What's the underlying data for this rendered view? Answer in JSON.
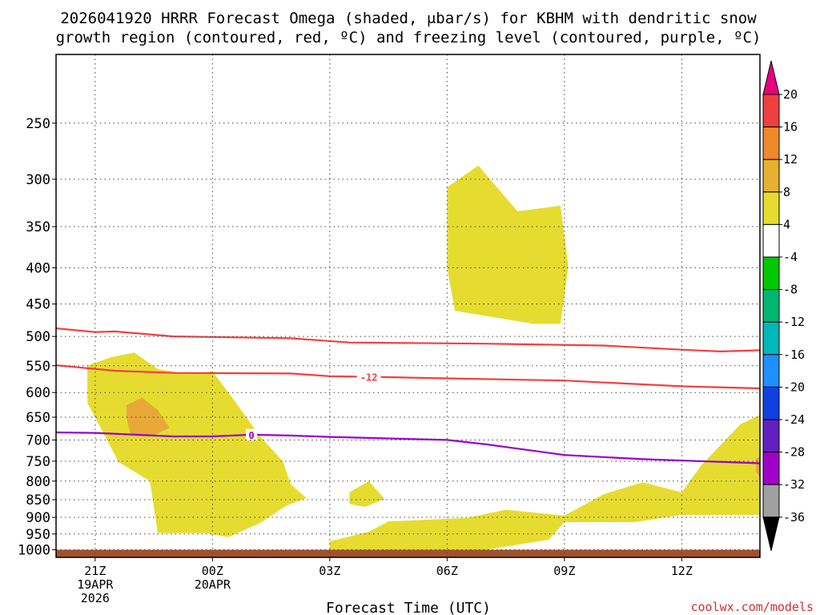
{
  "chart_data": {
    "type": "contour",
    "title_lines": [
      "2026041920 HRRR Forecast Omega (shaded, μbar/s) for KBHM with dendritic snow",
      "growth region (contoured, red, ºC) and freezing level (contoured, purple, ºC)"
    ],
    "xlabel": "Forecast Time (UTC)",
    "credit": "coolwx.com/models",
    "x_ticks": [
      {
        "h": 0,
        "lines": [
          "21Z",
          "19APR",
          "2026"
        ]
      },
      {
        "h": 3,
        "lines": [
          "00Z",
          "20APR"
        ]
      },
      {
        "h": 6,
        "lines": [
          "03Z"
        ]
      },
      {
        "h": 9,
        "lines": [
          "06Z"
        ]
      },
      {
        "h": 12,
        "lines": [
          "09Z"
        ]
      },
      {
        "h": 15,
        "lines": [
          "12Z"
        ]
      }
    ],
    "x_range_hours": [
      -1,
      17
    ],
    "y_axis_scale": "log",
    "y_range_hPa": [
      200,
      1025
    ],
    "y_ticks": [
      250,
      300,
      350,
      400,
      450,
      500,
      550,
      600,
      650,
      700,
      750,
      800,
      850,
      900,
      950,
      1000
    ],
    "grid": true,
    "colorbar": {
      "ticks": [
        "20",
        "16",
        "12",
        "8",
        "4",
        "-4",
        "-8",
        "-12",
        "-16",
        "-20",
        "-24",
        "-28",
        "-32",
        "-36"
      ],
      "colors": [
        "#e80080",
        "#ef4040",
        "#ef8a2a",
        "#e8b030",
        "#e6dc30",
        "#ffffff",
        "#00c800",
        "#00b870",
        "#00b8b8",
        "#1e90ff",
        "#1040e0",
        "#6020c0",
        "#a000c8",
        "#a0a0a0",
        "#000000"
      ]
    },
    "omega_regions": [
      {
        "level": "4-8",
        "color": "#e6dc30",
        "points": [
          [
            -0.2,
            550
          ],
          [
            0.4,
            535
          ],
          [
            1.0,
            527
          ],
          [
            1.6,
            556
          ],
          [
            2.4,
            565
          ],
          [
            3.0,
            560
          ],
          [
            3.6,
            620
          ],
          [
            4.2,
            690
          ],
          [
            4.8,
            750
          ],
          [
            5.0,
            808
          ],
          [
            5.4,
            845
          ],
          [
            4.9,
            866
          ],
          [
            4.2,
            918
          ],
          [
            3.4,
            960
          ],
          [
            2.8,
            947
          ],
          [
            1.6,
            947
          ],
          [
            1.4,
            800
          ],
          [
            0.6,
            752
          ],
          [
            -0.2,
            620
          ]
        ]
      },
      {
        "level": "4-8",
        "color": "#e6dc30",
        "points": [
          [
            6.5,
            830
          ],
          [
            7.0,
            800
          ],
          [
            7.4,
            848
          ],
          [
            6.9,
            870
          ],
          [
            6.5,
            862
          ]
        ]
      },
      {
        "level": "4-8",
        "color": "#e6dc30",
        "points": [
          [
            9.0,
            308
          ],
          [
            9.8,
            287
          ],
          [
            10.8,
            333
          ],
          [
            11.9,
            327
          ],
          [
            12.1,
            398
          ],
          [
            11.9,
            480
          ],
          [
            11.2,
            480
          ],
          [
            9.2,
            460
          ],
          [
            9.0,
            400
          ]
        ]
      },
      {
        "level": "4-8",
        "color": "#e6dc30",
        "points": [
          [
            6.0,
            973
          ],
          [
            7.0,
            943
          ],
          [
            7.5,
            912
          ],
          [
            9.5,
            902
          ],
          [
            10.5,
            878
          ],
          [
            12.0,
            895
          ],
          [
            13.0,
            835
          ],
          [
            14.0,
            803
          ],
          [
            15.0,
            830
          ],
          [
            15.5,
            760
          ],
          [
            16.5,
            665
          ],
          [
            17.0,
            645
          ],
          [
            17.0,
            893
          ],
          [
            15.0,
            893
          ],
          [
            13.8,
            914
          ],
          [
            12.0,
            914
          ],
          [
            11.6,
            968
          ],
          [
            10.0,
            1000
          ],
          [
            6.0,
            1000
          ]
        ]
      },
      {
        "level": "8-12",
        "color": "#e8a838",
        "points": [
          [
            0.8,
            625
          ],
          [
            1.2,
            610
          ],
          [
            1.6,
            635
          ],
          [
            1.9,
            673
          ],
          [
            1.5,
            690
          ],
          [
            0.9,
            686
          ],
          [
            0.8,
            650
          ]
        ]
      },
      {
        "level": "8-12",
        "color": "#e8a838",
        "points": [
          [
            16.9,
            745
          ],
          [
            17.0,
            738
          ],
          [
            17.0,
            792
          ],
          [
            16.9,
            775
          ]
        ]
      }
    ],
    "contours": [
      {
        "color": "#ef4040",
        "value": "",
        "points": [
          [
            -1,
            487
          ],
          [
            0,
            493
          ],
          [
            0.5,
            492
          ],
          [
            2,
            500
          ],
          [
            5,
            503
          ],
          [
            6.5,
            510
          ],
          [
            10,
            512
          ],
          [
            13,
            515
          ],
          [
            15,
            522
          ],
          [
            16,
            525
          ],
          [
            17,
            523
          ]
        ]
      },
      {
        "color": "#ef4040",
        "value": "-12",
        "label_at_hour": 7.0,
        "points": [
          [
            -1,
            549
          ],
          [
            0.5,
            559
          ],
          [
            2,
            563
          ],
          [
            5,
            564
          ],
          [
            6,
            569
          ],
          [
            7,
            570
          ],
          [
            9,
            573
          ],
          [
            12,
            577
          ],
          [
            15,
            588
          ],
          [
            17,
            592
          ]
        ]
      },
      {
        "color": "#9900cc",
        "value": "0",
        "label_at_hour": 4.0,
        "points": [
          [
            -1,
            683
          ],
          [
            0,
            684
          ],
          [
            2,
            692
          ],
          [
            3,
            692
          ],
          [
            4,
            688
          ],
          [
            5,
            690
          ],
          [
            6,
            693
          ],
          [
            9,
            700
          ],
          [
            10,
            710
          ],
          [
            12,
            735
          ],
          [
            14,
            745
          ],
          [
            17,
            755
          ]
        ]
      }
    ],
    "ground_fill": {
      "color": "#a0522d",
      "from_hPa": 1000,
      "to_hPa": 1025
    }
  }
}
